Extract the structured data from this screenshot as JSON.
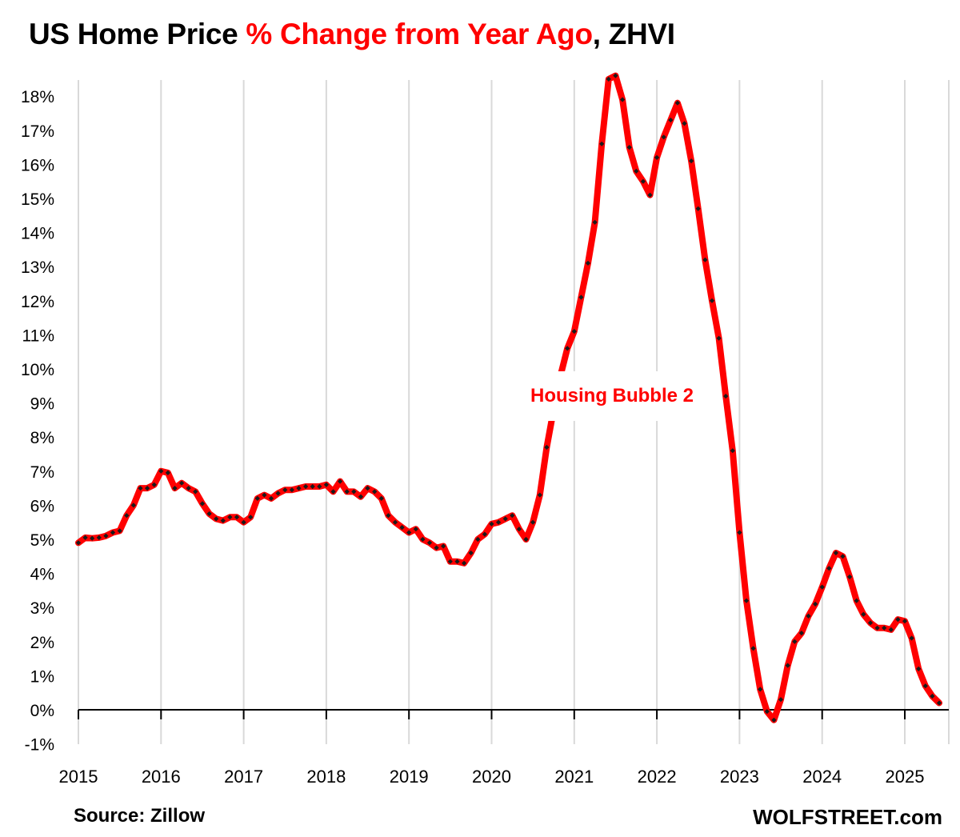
{
  "title": {
    "part1": "US Home Price ",
    "part2": "% Change from Year Ago",
    "part3": ", ZHVI"
  },
  "footer": {
    "source": "Source: Zillow",
    "brand": "WOLFSTREET.com"
  },
  "colors": {
    "line": "#ff0000",
    "markers": "#1a1a1a",
    "grid": "#d9d9d9",
    "axis": "#000000",
    "title_highlight": "#ff0000"
  },
  "chart_data": {
    "type": "line",
    "title": "US Home Price % Change from Year Ago, ZHVI",
    "xlabel": "",
    "ylabel": "",
    "ylim": [
      -1,
      18.5
    ],
    "y_ticks": [
      -1,
      0,
      1,
      2,
      3,
      4,
      5,
      6,
      7,
      8,
      9,
      10,
      11,
      12,
      13,
      14,
      15,
      16,
      17,
      18
    ],
    "y_tick_labels": [
      "-1%",
      "0%",
      "1%",
      "2%",
      "3%",
      "4%",
      "5%",
      "6%",
      "7%",
      "8%",
      "9%",
      "10%",
      "11%",
      "12%",
      "13%",
      "14%",
      "15%",
      "16%",
      "17%",
      "18%"
    ],
    "x_tick_labels": [
      "2015",
      "2016",
      "2017",
      "2018",
      "2019",
      "2020",
      "2021",
      "2022",
      "2023",
      "2024",
      "2025"
    ],
    "grid": "vertical",
    "annotation": "Housing Bubble 2",
    "series": [
      {
        "start": "2015-01",
        "frequency": "monthly",
        "values": [
          4.9,
          5.05,
          5.03,
          5.05,
          5.1,
          5.2,
          5.25,
          5.7,
          6.0,
          6.5,
          6.5,
          6.6,
          7.0,
          6.95,
          6.5,
          6.65,
          6.5,
          6.4,
          6.05,
          5.75,
          5.6,
          5.55,
          5.65,
          5.65,
          5.5,
          5.65,
          6.2,
          6.3,
          6.2,
          6.35,
          6.45,
          6.45,
          6.5,
          6.55,
          6.55,
          6.55,
          6.6,
          6.4,
          6.7,
          6.4,
          6.4,
          6.25,
          6.5,
          6.4,
          6.2,
          5.7,
          5.5,
          5.35,
          5.2,
          5.3,
          5.0,
          4.9,
          4.75,
          4.8,
          4.35,
          4.35,
          4.3,
          4.6,
          5.0,
          5.15,
          5.45,
          5.5,
          5.6,
          5.7,
          5.3,
          5.0,
          5.5,
          6.3,
          7.7,
          8.8,
          9.8,
          10.6,
          11.1,
          12.1,
          13.1,
          14.3,
          16.6,
          18.5,
          18.6,
          17.9,
          16.5,
          15.8,
          15.5,
          15.1,
          16.2,
          16.8,
          17.3,
          17.8,
          17.2,
          16.1,
          14.7,
          13.2,
          12.0,
          10.9,
          9.2,
          7.6,
          5.2,
          3.2,
          1.8,
          0.6,
          -0.05,
          -0.3,
          0.3,
          1.3,
          2.0,
          2.25,
          2.75,
          3.1,
          3.6,
          4.15,
          4.6,
          4.5,
          3.9,
          3.2,
          2.8,
          2.55,
          2.4,
          2.4,
          2.35,
          2.65,
          2.6,
          2.1,
          1.2,
          0.7,
          0.4,
          0.2
        ]
      }
    ]
  }
}
